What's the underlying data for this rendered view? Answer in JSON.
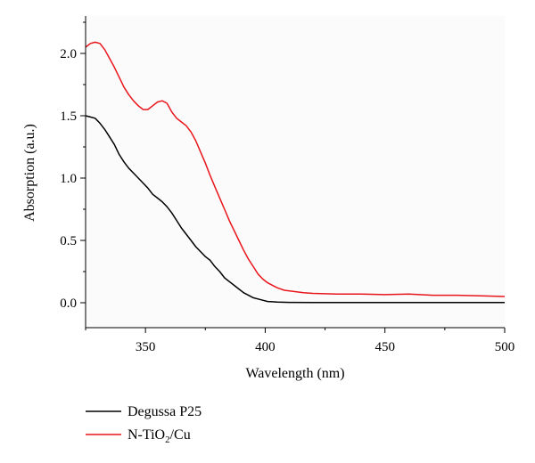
{
  "chart_data": {
    "type": "line",
    "title": "",
    "xlabel": "Wavelength (nm)",
    "ylabel": "Absorption (a.u.)",
    "xlim": [
      325,
      500
    ],
    "ylim": [
      -0.2,
      2.3
    ],
    "x_ticks": [
      350,
      400,
      450,
      500
    ],
    "x_tick_labels": [
      "350",
      "400",
      "450",
      "500"
    ],
    "y_ticks": [
      0.0,
      0.5,
      1.0,
      1.5,
      2.0
    ],
    "y_tick_labels": [
      "0.0",
      "0.5",
      "1.0",
      "1.5",
      "2.0"
    ],
    "grid": false,
    "legend_position": "bottom-left",
    "series": [
      {
        "name": "Degussa P25",
        "color": "#000000",
        "x": [
          325,
          327,
          329,
          331,
          333,
          335,
          337,
          339,
          341,
          343,
          345,
          347,
          349,
          351,
          353,
          355,
          357,
          359,
          361,
          363,
          365,
          367,
          369,
          371,
          373,
          375,
          377,
          379,
          381,
          383,
          385,
          387,
          389,
          391,
          393,
          395,
          397,
          399,
          401,
          403,
          405,
          410,
          420,
          430,
          440,
          450,
          460,
          470,
          480,
          490,
          500
        ],
        "y": [
          1.5,
          1.49,
          1.48,
          1.44,
          1.39,
          1.33,
          1.27,
          1.19,
          1.13,
          1.08,
          1.04,
          1.0,
          0.96,
          0.92,
          0.87,
          0.84,
          0.81,
          0.77,
          0.72,
          0.66,
          0.6,
          0.55,
          0.5,
          0.45,
          0.41,
          0.37,
          0.34,
          0.29,
          0.25,
          0.2,
          0.17,
          0.14,
          0.11,
          0.08,
          0.06,
          0.04,
          0.03,
          0.02,
          0.01,
          0.008,
          0.005,
          0.003,
          0.002,
          0.002,
          0.002,
          0.002,
          0.002,
          0.002,
          0.002,
          0.002,
          0.002
        ]
      },
      {
        "name": "N-TiO2/Cu",
        "color": "#e8151b",
        "x": [
          325,
          327,
          329,
          331,
          333,
          335,
          337,
          339,
          341,
          343,
          345,
          347,
          349,
          351,
          353,
          355,
          357,
          359,
          361,
          363,
          365,
          367,
          369,
          371,
          373,
          375,
          377,
          379,
          381,
          383,
          385,
          387,
          389,
          391,
          393,
          395,
          397,
          399,
          401,
          403,
          405,
          408,
          412,
          416,
          420,
          430,
          440,
          450,
          460,
          470,
          480,
          490,
          500
        ],
        "y": [
          2.05,
          2.08,
          2.09,
          2.08,
          2.03,
          1.96,
          1.89,
          1.81,
          1.73,
          1.67,
          1.62,
          1.58,
          1.55,
          1.55,
          1.58,
          1.61,
          1.62,
          1.6,
          1.53,
          1.48,
          1.45,
          1.42,
          1.37,
          1.3,
          1.21,
          1.12,
          1.02,
          0.93,
          0.84,
          0.75,
          0.66,
          0.58,
          0.5,
          0.42,
          0.35,
          0.29,
          0.23,
          0.19,
          0.16,
          0.14,
          0.12,
          0.1,
          0.09,
          0.08,
          0.075,
          0.07,
          0.07,
          0.065,
          0.07,
          0.06,
          0.06,
          0.055,
          0.05
        ]
      }
    ],
    "legend": {
      "entries": [
        {
          "label": "Degussa P25",
          "color": "#000000"
        },
        {
          "label_main": "N-TiO",
          "label_sub": "2",
          "label_tail": "/Cu",
          "color": "#e8151b"
        }
      ]
    }
  }
}
